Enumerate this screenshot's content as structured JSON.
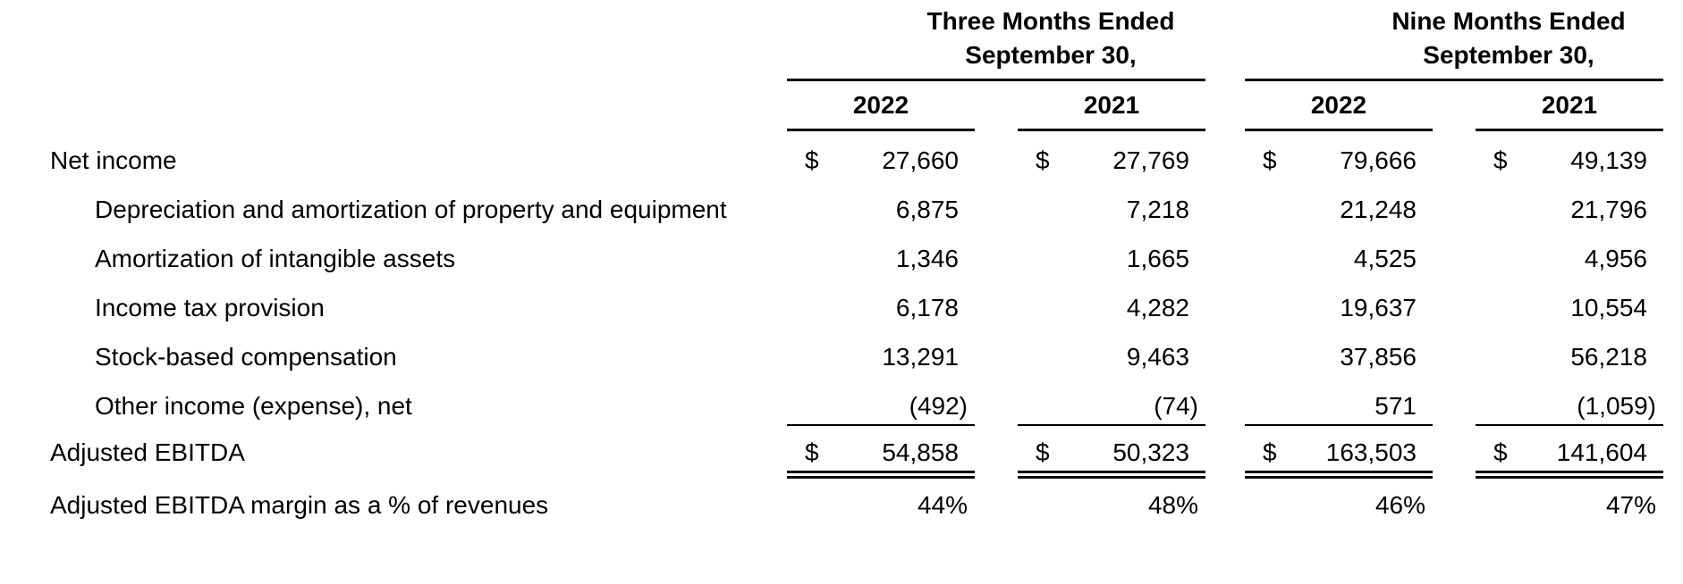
{
  "table": {
    "group_headers": [
      {
        "line1": "Three Months Ended",
        "line2": "September 30,"
      },
      {
        "line1": "Nine Months Ended",
        "line2": "September 30,"
      }
    ],
    "years": [
      "2022",
      "2021",
      "2022",
      "2021"
    ],
    "currency_symbol": "$",
    "rows": [
      {
        "label": "Net income",
        "indent": false,
        "dollar": true,
        "values": [
          "27,660",
          "27,769",
          "79,666",
          "49,139"
        ]
      },
      {
        "label": "Depreciation and amortization of property and equipment",
        "indent": true,
        "dollar": false,
        "values": [
          "6,875",
          "7,218",
          "21,248",
          "21,796"
        ]
      },
      {
        "label": "Amortization of intangible assets",
        "indent": true,
        "dollar": false,
        "values": [
          "1,346",
          "1,665",
          "4,525",
          "4,956"
        ]
      },
      {
        "label": "Income tax provision",
        "indent": true,
        "dollar": false,
        "values": [
          "6,178",
          "4,282",
          "19,637",
          "10,554"
        ]
      },
      {
        "label": "Stock-based compensation",
        "indent": true,
        "dollar": false,
        "values": [
          "13,291",
          "9,463",
          "37,856",
          "56,218"
        ]
      },
      {
        "label": "Other income (expense), net",
        "indent": true,
        "dollar": false,
        "values": [
          "(492)",
          "(74)",
          "571",
          "(1,059)"
        ]
      },
      {
        "label": "Adjusted EBITDA",
        "indent": false,
        "dollar": true,
        "values": [
          "54,858",
          "50,323",
          "163,503",
          "141,604"
        ]
      },
      {
        "label": "Adjusted EBITDA margin as a % of revenues",
        "indent": false,
        "dollar": false,
        "values": [
          "44%",
          "48%",
          "46%",
          "47%"
        ]
      }
    ]
  }
}
